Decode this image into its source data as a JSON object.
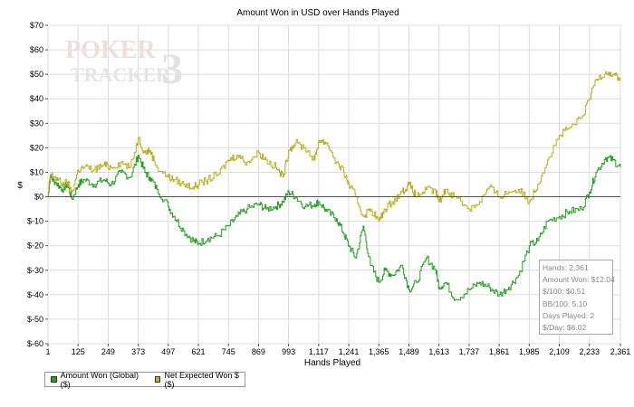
{
  "chart_data": {
    "type": "line",
    "title": "Amount Won in USD over Hands Played",
    "xlabel": "Hands Played",
    "ylabel": "$",
    "xlim": [
      1,
      2361
    ],
    "ylim": [
      -60,
      70
    ],
    "x_ticks": [
      "1",
      "125",
      "249",
      "373",
      "497",
      "621",
      "745",
      "869",
      "993",
      "1,117",
      "1,241",
      "1,365",
      "1,489",
      "1,613",
      "1,737",
      "1,861",
      "1,985",
      "2,109",
      "2,233",
      "2,361"
    ],
    "y_ticks": [
      "$70",
      "$60",
      "$50",
      "$40",
      "$30",
      "$20",
      "$10",
      "$0",
      "$-10",
      "$-20",
      "$-30",
      "$-40",
      "$-50",
      "$-60"
    ],
    "grid": true,
    "legend_position": "bottom-left",
    "series": [
      {
        "name": "Amount Won (Global) ($)",
        "color": "#22a022",
        "x": [
          1,
          10,
          30,
          60,
          80,
          100,
          125,
          150,
          190,
          230,
          260,
          300,
          340,
          373,
          400,
          420,
          450,
          497,
          520,
          560,
          600,
          621,
          660,
          700,
          745,
          780,
          820,
          869,
          900,
          940,
          970,
          993,
          1020,
          1060,
          1100,
          1117,
          1150,
          1190,
          1220,
          1241,
          1270,
          1300,
          1330,
          1365,
          1390,
          1420,
          1460,
          1489,
          1520,
          1560,
          1600,
          1613,
          1640,
          1680,
          1737,
          1780,
          1820,
          1861,
          1900,
          1940,
          1985,
          2020,
          2060,
          2109,
          2150,
          2200,
          2233,
          2260,
          2300,
          2330,
          2361
        ],
        "values": [
          0,
          8,
          6,
          3,
          5,
          -1,
          5,
          7,
          5,
          7,
          5,
          10,
          8,
          17,
          10,
          8,
          3,
          -4,
          -8,
          -14,
          -18,
          -19,
          -17,
          -16,
          -12,
          -8,
          -5,
          -3,
          -5,
          -4,
          -2,
          2,
          0,
          -4,
          -3,
          -2,
          -6,
          -9,
          -15,
          -20,
          -25,
          -12,
          -28,
          -35,
          -30,
          -32,
          -28,
          -38,
          -35,
          -25,
          -30,
          -37,
          -35,
          -42,
          -38,
          -35,
          -37,
          -40,
          -37,
          -32,
          -20,
          -18,
          -10,
          -8,
          -6,
          -5,
          2,
          10,
          16,
          15,
          12
        ]
      },
      {
        "name": "Net Expected Won $ ($)",
        "color": "#b8b020",
        "x": [
          1,
          10,
          30,
          60,
          80,
          100,
          125,
          150,
          190,
          230,
          260,
          300,
          340,
          373,
          400,
          420,
          450,
          497,
          520,
          560,
          600,
          621,
          660,
          700,
          745,
          780,
          820,
          869,
          900,
          940,
          970,
          993,
          1020,
          1060,
          1100,
          1117,
          1150,
          1190,
          1220,
          1241,
          1270,
          1300,
          1330,
          1365,
          1390,
          1420,
          1460,
          1489,
          1520,
          1560,
          1600,
          1613,
          1640,
          1680,
          1737,
          1780,
          1820,
          1861,
          1900,
          1940,
          1985,
          2020,
          2060,
          2109,
          2150,
          2200,
          2233,
          2260,
          2300,
          2330,
          2361
        ],
        "values": [
          0,
          9,
          8,
          5,
          6,
          2,
          11,
          12,
          11,
          13,
          12,
          14,
          12,
          24,
          18,
          19,
          12,
          8,
          7,
          5,
          4,
          5,
          7,
          9,
          15,
          17,
          14,
          18,
          15,
          12,
          8,
          19,
          22,
          20,
          15,
          23,
          22,
          14,
          10,
          5,
          0,
          -8,
          -5,
          -10,
          -5,
          -2,
          2,
          5,
          0,
          3,
          2,
          -2,
          3,
          0,
          -5,
          -2,
          4,
          0,
          2,
          3,
          -2,
          5,
          15,
          25,
          28,
          32,
          40,
          48,
          51,
          50,
          48
        ]
      }
    ]
  },
  "info_box": {
    "lines": [
      "Hands: 2,361",
      "Amount Won: $12.04",
      "$/100: $0.51",
      "BB/100: 5.10",
      "Days Played: 2",
      "$/Day: $6.02"
    ]
  },
  "watermark": {
    "line1": "POKER",
    "line2": "TRACKER",
    "numeral": "3"
  }
}
